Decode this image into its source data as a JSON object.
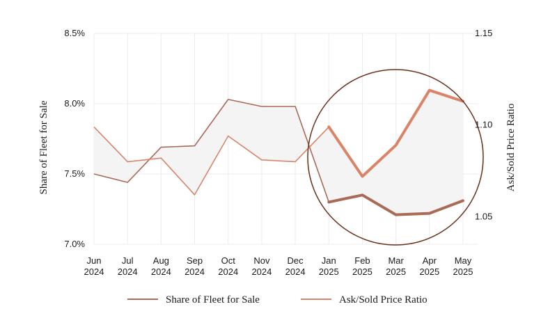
{
  "chart_data": {
    "type": "line",
    "categories": [
      [
        "Jun",
        "2024"
      ],
      [
        "Jul",
        "2024"
      ],
      [
        "Aug",
        "2024"
      ],
      [
        "Sep",
        "2024"
      ],
      [
        "Oct",
        "2024"
      ],
      [
        "Nov",
        "2024"
      ],
      [
        "Dec",
        "2024"
      ],
      [
        "Jan",
        "2025"
      ],
      [
        "Feb",
        "2025"
      ],
      [
        "Mar",
        "2025"
      ],
      [
        "Apr",
        "2025"
      ],
      [
        "May",
        "2025"
      ]
    ],
    "y_left": {
      "label": "Share of Fleet for Sale",
      "range": [
        7.0,
        8.5
      ],
      "ticks": [
        "7.0%",
        "7.5%",
        "8.0%",
        "8.5%"
      ],
      "tick_values": [
        7.0,
        7.5,
        8.0,
        8.5
      ]
    },
    "y_right": {
      "label": "Ask/Sold  Price Ratio",
      "range": [
        1.035,
        1.15
      ],
      "ticks": [
        "1.05",
        "1.10",
        "1.15"
      ],
      "tick_values": [
        1.05,
        1.1,
        1.15
      ]
    },
    "series": [
      {
        "name": "Share of Fleet for Sale",
        "axis": "left",
        "color": "#a96a56",
        "values": [
          7.5,
          7.44,
          7.69,
          7.7,
          8.03,
          7.98,
          7.98,
          7.3,
          7.35,
          7.21,
          7.22,
          7.31
        ]
      },
      {
        "name": "Ask/Sold Price Ratio",
        "axis": "right",
        "color": "#d98468",
        "values": [
          1.099,
          1.08,
          1.082,
          1.062,
          1.094,
          1.081,
          1.08,
          1.099,
          1.072,
          1.089,
          1.119,
          1.113
        ]
      }
    ],
    "highlight_from_index": 7,
    "grid": true,
    "legend_position": "bottom",
    "fill_between_color": "#f4f4f4",
    "circle_color": "#6b2e1a"
  }
}
